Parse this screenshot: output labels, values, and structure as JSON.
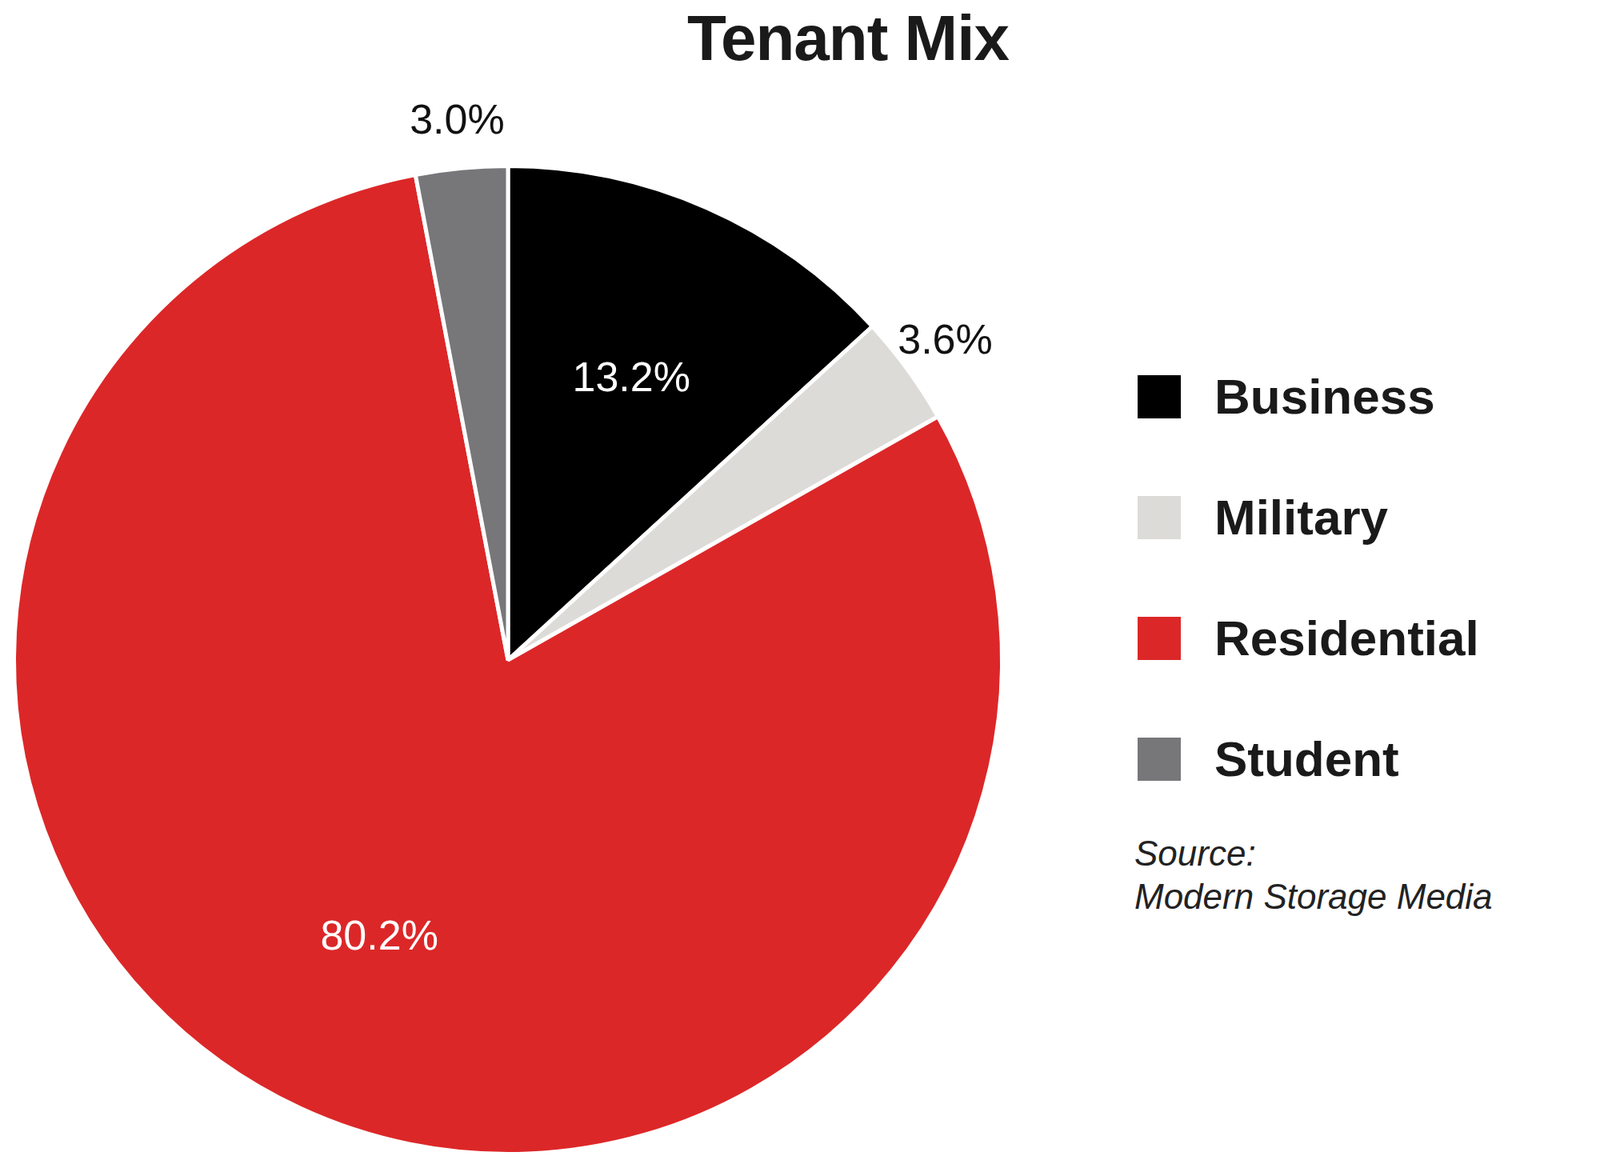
{
  "chart_data": {
    "type": "pie",
    "title": "Tenant Mix",
    "categories": [
      "Business",
      "Military",
      "Residential",
      "Student"
    ],
    "values": [
      13.2,
      3.6,
      80.2,
      3.0
    ],
    "value_labels": [
      "13.2%",
      "3.6%",
      "80.2%",
      "3.0%"
    ],
    "colors": [
      "#000000",
      "#dcdbd7",
      "#dc2728",
      "#77777a"
    ],
    "data_labels": true,
    "legend": "right",
    "annotations": [
      "Source:",
      "Modern Storage Media"
    ]
  }
}
